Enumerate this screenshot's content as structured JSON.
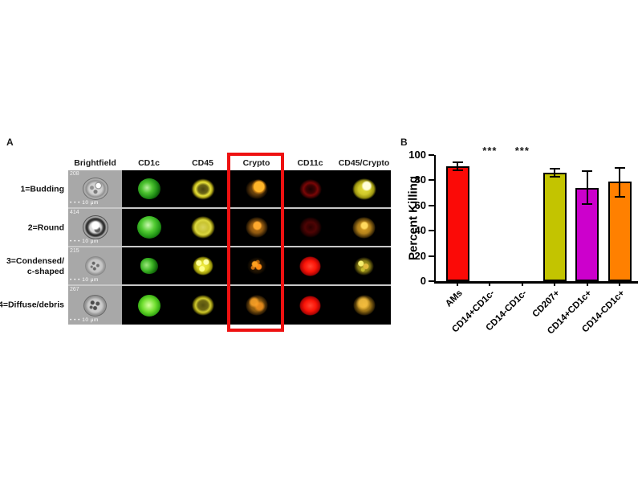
{
  "figure": {
    "panel_a": {
      "label": "A",
      "column_headers": [
        "Brightfield",
        "CD1c",
        "CD45",
        "Crypto",
        "CD11c",
        "CD45/Crypto"
      ],
      "highlighted_column": "Crypto",
      "scale_dots": "• • •",
      "rows": [
        {
          "label_lines": [
            "1=Budding"
          ],
          "cell_id": "208",
          "scale_bar": "10 μm",
          "cells": [
            "bf1",
            "green1",
            "yring1",
            "obud1",
            "dred1",
            "myellow1"
          ]
        },
        {
          "label_lines": [
            "2=Round"
          ],
          "cell_id": "414",
          "scale_bar": "10 μm",
          "cells": [
            "bf2",
            "green2",
            "yfill2",
            "oround2",
            "dred2",
            "morange2"
          ]
        },
        {
          "label_lines": [
            "3=Condensed/",
            "c-shaped"
          ],
          "cell_id": "215",
          "scale_bar": "10 μm",
          "cells": [
            "bf3",
            "green3",
            "yspeck3",
            "ospeck3",
            "rsolid",
            "mspeck3"
          ]
        },
        {
          "label_lines": [
            "4=Diffuse/debris"
          ],
          "cell_id": "267",
          "scale_bar": "10 μm",
          "cells": [
            "bf4",
            "green4",
            "yring4",
            "odiff4",
            "rsolid",
            "mdiff4"
          ]
        }
      ],
      "highlight_color": "#ee1111"
    },
    "panel_b": {
      "label": "B"
    }
  },
  "chart_data": {
    "type": "bar",
    "title": "",
    "xlabel": "",
    "ylabel": "Percent Killing",
    "ylim": [
      0,
      100
    ],
    "yticks": [
      0,
      20,
      40,
      60,
      80,
      100
    ],
    "categories": [
      "AMs",
      "CD14+CD1c-",
      "CD14-CD1c-",
      "CD207+",
      "CD14+CD1c+",
      "CD14-CD1c+"
    ],
    "values": [
      91,
      0,
      0,
      86,
      74,
      79
    ],
    "error_low": [
      88,
      null,
      null,
      83,
      61,
      67
    ],
    "error_high": [
      94,
      null,
      null,
      89,
      87,
      90
    ],
    "bar_colors": [
      "#fb0a07",
      null,
      null,
      "#c3c400",
      "#cc00cc",
      "#ff8000"
    ],
    "bar_border_color": "#000000",
    "significance": [
      {
        "index": 1,
        "text": "***"
      },
      {
        "index": 2,
        "text": "***"
      }
    ],
    "grid": false,
    "legend": "none"
  }
}
